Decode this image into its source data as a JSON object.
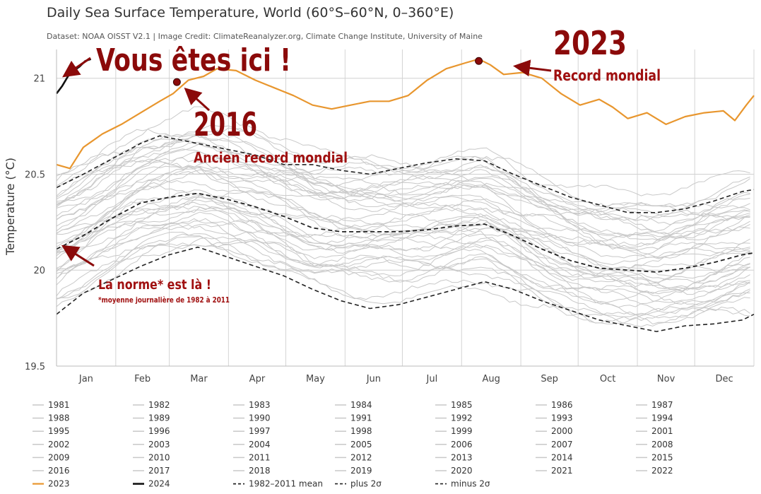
{
  "chart_data": {
    "type": "line",
    "title": "Daily Sea Surface Temperature, World (60°S–60°N, 0–360°E)",
    "subtitle": "Dataset: NOAA OISST V2.1 | Image Credit: ClimateReanalyzer.org, Climate Change Institute, University of Maine",
    "ylabel": "Temperature (°C)",
    "xlabel": "",
    "ylim": [
      19.5,
      21.15
    ],
    "yticks": [
      19.5,
      20,
      20.5,
      21
    ],
    "ytick_labels": [
      "19.5",
      "20",
      "20.5",
      "21"
    ],
    "months": [
      "Jan",
      "Feb",
      "Mar",
      "Apr",
      "May",
      "Jun",
      "Jul",
      "Aug",
      "Sep",
      "Oct",
      "Nov",
      "Dec"
    ],
    "grid": true,
    "x_range_days": [
      1,
      366
    ],
    "series": [
      {
        "name": "2023",
        "color": "#e8962e",
        "width": 2.2,
        "x": [
          1,
          8,
          15,
          25,
          35,
          45,
          55,
          62,
          70,
          78,
          85,
          95,
          105,
          115,
          125,
          135,
          145,
          155,
          165,
          175,
          185,
          195,
          205,
          215,
          222,
          228,
          235,
          245,
          255,
          265,
          275,
          285,
          292,
          300,
          310,
          320,
          330,
          340,
          350,
          356,
          362,
          366
        ],
        "y": [
          20.55,
          20.53,
          20.64,
          20.71,
          20.76,
          20.82,
          20.88,
          20.92,
          20.99,
          21.01,
          21.05,
          21.04,
          20.99,
          20.95,
          20.91,
          20.86,
          20.84,
          20.86,
          20.88,
          20.88,
          20.91,
          20.99,
          21.05,
          21.08,
          21.1,
          21.07,
          21.02,
          21.03,
          21.0,
          20.92,
          20.86,
          20.89,
          20.85,
          20.79,
          20.82,
          20.76,
          20.8,
          20.82,
          20.83,
          20.78,
          20.86,
          20.91
        ]
      },
      {
        "name": "2024",
        "color": "#111111",
        "width": 2.6,
        "x": [
          1,
          4,
          7,
          10,
          13,
          16,
          19
        ],
        "y": [
          20.92,
          20.96,
          21.01,
          21.04,
          21.06,
          21.09,
          21.1
        ]
      },
      {
        "name": "1982–2011 mean",
        "color": "#222222",
        "width": 1.8,
        "dash": "6,4",
        "x": [
          1,
          15,
          30,
          45,
          60,
          75,
          90,
          105,
          120,
          135,
          150,
          165,
          180,
          195,
          210,
          225,
          240,
          255,
          270,
          285,
          300,
          315,
          330,
          345,
          360,
          366
        ],
        "y": [
          20.11,
          20.18,
          20.27,
          20.35,
          20.38,
          20.4,
          20.37,
          20.33,
          20.28,
          20.22,
          20.2,
          20.2,
          20.2,
          20.21,
          20.23,
          20.24,
          20.18,
          20.11,
          20.05,
          20.01,
          20.0,
          19.99,
          20.01,
          20.04,
          20.08,
          20.09
        ]
      },
      {
        "name": "plus 2σ",
        "color": "#222222",
        "width": 1.6,
        "dash": "6,4",
        "x": [
          1,
          15,
          30,
          45,
          55,
          70,
          90,
          105,
          120,
          135,
          150,
          165,
          180,
          195,
          210,
          225,
          240,
          255,
          270,
          285,
          300,
          315,
          330,
          345,
          360,
          366
        ],
        "y": [
          20.43,
          20.5,
          20.58,
          20.66,
          20.7,
          20.67,
          20.63,
          20.6,
          20.55,
          20.55,
          20.52,
          20.5,
          20.53,
          20.56,
          20.58,
          20.57,
          20.5,
          20.44,
          20.38,
          20.34,
          20.3,
          20.3,
          20.32,
          20.36,
          20.41,
          20.42
        ]
      },
      {
        "name": "minus 2σ",
        "color": "#222222",
        "width": 1.6,
        "dash": "6,4",
        "x": [
          1,
          15,
          30,
          45,
          60,
          75,
          90,
          105,
          120,
          135,
          150,
          165,
          180,
          195,
          210,
          225,
          240,
          255,
          270,
          285,
          300,
          315,
          330,
          345,
          360,
          366
        ],
        "y": [
          19.77,
          19.88,
          19.95,
          20.02,
          20.08,
          20.12,
          20.07,
          20.02,
          19.97,
          19.9,
          19.84,
          19.8,
          19.82,
          19.86,
          19.9,
          19.94,
          19.9,
          19.84,
          19.79,
          19.74,
          19.71,
          19.68,
          19.71,
          19.72,
          19.74,
          19.77
        ]
      }
    ],
    "background_years": [
      "1981",
      "1982",
      "1983",
      "1984",
      "1985",
      "1986",
      "1987",
      "1988",
      "1989",
      "1990",
      "1991",
      "1992",
      "1993",
      "1994",
      "1995",
      "1996",
      "1997",
      "1998",
      "1999",
      "2000",
      "2001",
      "2002",
      "2003",
      "2004",
      "2005",
      "2006",
      "2007",
      "2008",
      "2009",
      "2010",
      "2011",
      "2012",
      "2013",
      "2014",
      "2015",
      "2016",
      "2017",
      "2018",
      "2019",
      "2020",
      "2021",
      "2022"
    ],
    "background_year_color": "#c8c8c8",
    "legend_placement": "bottom",
    "legend_items": [
      "1981",
      "1982",
      "1983",
      "1984",
      "1985",
      "1986",
      "1987",
      "1988",
      "1989",
      "1990",
      "1991",
      "1992",
      "1993",
      "1994",
      "1995",
      "1996",
      "1997",
      "1998",
      "1999",
      "2000",
      "2001",
      "2002",
      "2003",
      "2004",
      "2005",
      "2006",
      "2007",
      "2008",
      "2009",
      "2010",
      "2011",
      "2012",
      "2013",
      "2014",
      "2015",
      "2016",
      "2017",
      "2018",
      "2019",
      "2020",
      "2021",
      "2022",
      "2023",
      "2024",
      "1982–2011 mean",
      "plus 2σ",
      "minus 2σ"
    ],
    "annotations": {
      "here": "Vous êtes ici !",
      "y2016": "2016",
      "y2016_sub": "Ancien record mondial",
      "y2023": "2023",
      "y2023_sub": "Record mondial",
      "norm": "La norme* est là !",
      "norm_sub": "*moyenne journalière de 1982 à 2011",
      "marker_2016": {
        "day": 64,
        "value": 20.98
      },
      "marker_2023": {
        "day": 222,
        "value": 21.09
      },
      "color": "#8b0a0a"
    }
  }
}
